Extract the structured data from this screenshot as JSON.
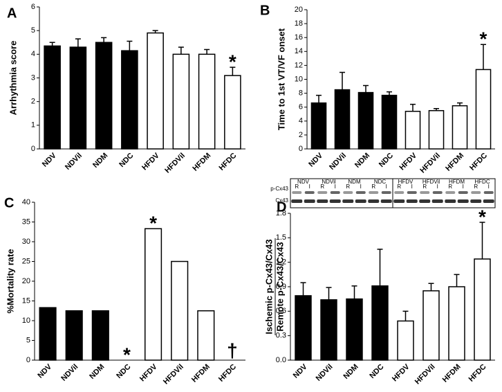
{
  "chart_data": [
    {
      "type": "bar",
      "panel": "A",
      "ylabel": [
        "Arrhythmia score"
      ],
      "categories": [
        "NDV",
        "NDVil",
        "NDM",
        "NDC",
        "HFDV",
        "HFDVil",
        "HFDM",
        "HFDC"
      ],
      "values": [
        4.35,
        4.3,
        4.5,
        4.15,
        4.9,
        4.0,
        4.0,
        3.1
      ],
      "errors": [
        0.15,
        0.35,
        0.2,
        0.4,
        0.1,
        0.3,
        0.2,
        0.35
      ],
      "colors": [
        "#000000",
        "#000000",
        "#000000",
        "#000000",
        "#ffffff",
        "#ffffff",
        "#ffffff",
        "#ffffff"
      ],
      "ylim": [
        0,
        6
      ],
      "yticks": [
        0,
        1,
        2,
        3,
        4,
        5,
        6
      ],
      "annotations": [
        {
          "text": "*",
          "category": "HFDC"
        }
      ]
    },
    {
      "type": "bar",
      "panel": "B",
      "ylabel": [
        "Time to 1st VT/VF onset"
      ],
      "categories": [
        "NDV",
        "NDVil",
        "NDM",
        "NDC",
        "HFDV",
        "HFDVil",
        "HFDM",
        "HFDC"
      ],
      "values": [
        6.6,
        8.5,
        8.1,
        7.7,
        5.4,
        5.5,
        6.2,
        11.4
      ],
      "errors": [
        1.1,
        2.5,
        1.0,
        0.5,
        1.0,
        0.3,
        0.4,
        3.6
      ],
      "colors": [
        "#000000",
        "#000000",
        "#000000",
        "#000000",
        "#ffffff",
        "#ffffff",
        "#ffffff",
        "#ffffff"
      ],
      "ylim": [
        0,
        20
      ],
      "yticks": [
        0,
        2,
        4,
        6,
        8,
        10,
        12,
        14,
        16,
        18,
        20
      ],
      "annotations": [
        {
          "text": "*",
          "category": "HFDC"
        }
      ]
    },
    {
      "type": "bar",
      "panel": "C",
      "ylabel": [
        "%Mortality rate"
      ],
      "categories": [
        "NDV",
        "NDVil",
        "NDM",
        "NDC",
        "HFDV",
        "HFDVil",
        "HFDM",
        "HFDC"
      ],
      "values": [
        13.3,
        12.5,
        12.5,
        0,
        33.3,
        25,
        12.5,
        0
      ],
      "colors": [
        "#000000",
        "#000000",
        "#000000",
        "#000000",
        "#ffffff",
        "#ffffff",
        "#ffffff",
        "#ffffff"
      ],
      "ylim": [
        0,
        40
      ],
      "yticks": [
        0,
        5,
        10,
        15,
        20,
        25,
        30,
        35,
        40
      ],
      "annotations": [
        {
          "text": "*",
          "category": "NDC"
        },
        {
          "text": "*",
          "category": "HFDV"
        },
        {
          "text": "†",
          "category": "HFDC"
        }
      ]
    },
    {
      "type": "bar",
      "panel": "D",
      "ylabel": [
        "Ischemic p-Cx43/Cx43",
        "Remote p-Cx43/Cx43"
      ],
      "categories": [
        "NDV",
        "NDVil",
        "NDM",
        "NDC",
        "HFDV",
        "HFDVil",
        "HFDM",
        "HFDC"
      ],
      "values": [
        0.79,
        0.74,
        0.75,
        0.91,
        0.48,
        0.85,
        0.9,
        1.24
      ],
      "errors": [
        0.16,
        0.15,
        0.16,
        0.45,
        0.12,
        0.09,
        0.15,
        0.45
      ],
      "colors": [
        "#000000",
        "#000000",
        "#000000",
        "#000000",
        "#ffffff",
        "#ffffff",
        "#ffffff",
        "#ffffff"
      ],
      "ylim": [
        0,
        1.8
      ],
      "yticks": [
        {
          "value": 0,
          "label": "0.0"
        },
        0.3,
        0.6,
        0.9,
        1.2,
        1.5,
        1.8
      ],
      "annotations": [
        {
          "text": "*",
          "category": "HFDC"
        }
      ],
      "blot": {
        "rows": [
          "p-Cx43",
          "Cx43"
        ],
        "lanes": [
          "NDV",
          "NDVil",
          "NDM",
          "NDC",
          "HFDV",
          "HFDVil",
          "HFDM",
          "HFDC"
        ],
        "lane_labels": [
          "R",
          "I"
        ]
      }
    }
  ]
}
